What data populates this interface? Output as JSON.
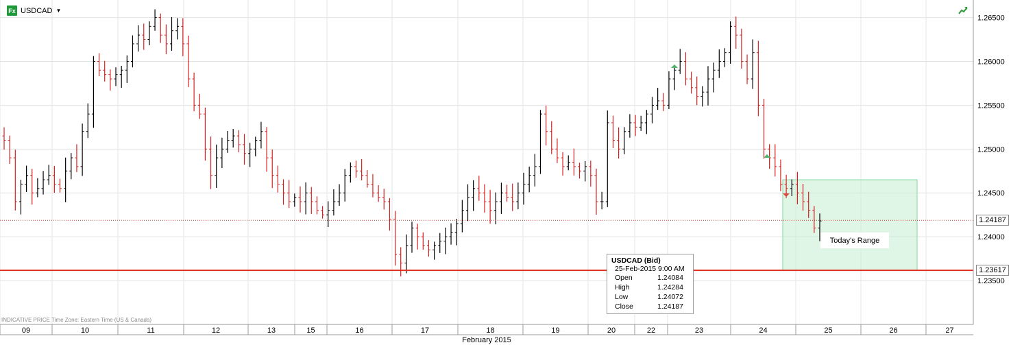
{
  "header": {
    "symbol": "USDCAD",
    "icon_text": "Fx"
  },
  "chart_data": {
    "type": "ohlc",
    "ylim": [
      1.23,
      1.267
    ],
    "yticks": [
      "1.26500",
      "1.26000",
      "1.25500",
      "1.25000",
      "1.24500",
      "1.24000",
      "1.23500"
    ],
    "xticks": [
      "09",
      "10",
      "11",
      "12",
      "13",
      "15",
      "16",
      "17",
      "18",
      "19",
      "20",
      "22",
      "23",
      "24",
      "25",
      "26",
      "27"
    ],
    "xlabel": "February 2015",
    "current_price": "1.24187",
    "support_price": "1.23617",
    "today_range_label": "Today's Range",
    "footer_note": "INDICATIVE PRICE   Time Zone: Eastern Time (US & Canada)",
    "tooltip": {
      "title": "USDCAD (Bid)",
      "datetime": "25-Feb-2015 9:00 AM",
      "rows": [
        {
          "label": "Open",
          "value": "1.24084"
        },
        {
          "label": "High",
          "value": "1.24284"
        },
        {
          "label": "Low",
          "value": "1.24072"
        },
        {
          "label": "Close",
          "value": "1.24187"
        }
      ]
    },
    "series_points": [
      1.251,
      1.249,
      1.244,
      1.246,
      1.247,
      1.245,
      1.2455,
      1.2465,
      1.247,
      1.246,
      1.2455,
      1.2475,
      1.249,
      1.248,
      1.252,
      1.254,
      1.26,
      1.259,
      1.2585,
      1.258,
      1.2585,
      1.259,
      1.26,
      1.262,
      1.263,
      1.2625,
      1.264,
      1.265,
      1.263,
      1.262,
      1.2635,
      1.264,
      1.262,
      1.258,
      1.255,
      1.254,
      1.25,
      1.247,
      1.249,
      1.25,
      1.251,
      1.2515,
      1.2505,
      1.2495,
      1.25,
      1.251,
      1.252,
      1.249,
      1.247,
      1.246,
      1.245,
      1.244,
      1.2445,
      1.244,
      1.245,
      1.244,
      1.243,
      1.2425,
      1.243,
      1.244,
      1.245,
      1.247,
      1.248,
      1.2475,
      1.247,
      1.246,
      1.245,
      1.2445,
      1.244,
      1.242,
      1.238,
      1.237,
      1.239,
      1.241,
      1.24,
      1.239,
      1.2385,
      1.239,
      1.2395,
      1.24,
      1.2405,
      1.2415,
      1.243,
      1.2445,
      1.2455,
      1.245,
      1.244,
      1.243,
      1.244,
      1.245,
      1.2445,
      1.244,
      1.245,
      1.246,
      1.247,
      1.248,
      1.254,
      1.252,
      1.25,
      1.249,
      1.248,
      1.2485,
      1.248,
      1.2475,
      1.248,
      1.247,
      1.244,
      1.244,
      1.253,
      1.251,
      1.25,
      1.252,
      1.253,
      1.2525,
      1.253,
      1.254,
      1.255,
      1.2555,
      1.255,
      1.258,
      1.259,
      1.26,
      1.258,
      1.257,
      1.256,
      1.2565,
      1.258,
      1.259,
      1.26,
      1.261,
      1.264,
      1.263,
      1.26,
      1.258,
      1.261,
      1.255,
      1.25,
      1.249,
      1.248,
      1.246,
      1.2455,
      1.246,
      1.245,
      1.244,
      1.243,
      1.241,
      1.2418
    ]
  }
}
